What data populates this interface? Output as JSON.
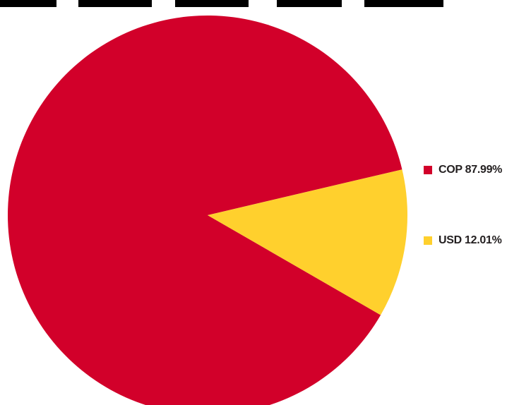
{
  "colors": {
    "cop": "#d2002a",
    "usd": "#ffd02d",
    "text": "#231f20"
  },
  "chart_data": {
    "type": "pie",
    "title": "",
    "series": [
      {
        "name": "COP",
        "value": 87.99,
        "color": "#d2002a",
        "legend_label": "COP 87.99%"
      },
      {
        "name": "USD",
        "value": 12.01,
        "color": "#ffd02d",
        "legend_label": "USD 12.01%"
      }
    ],
    "start_angle_deg": 30,
    "direction": "clockwise",
    "legend_position": "right"
  }
}
